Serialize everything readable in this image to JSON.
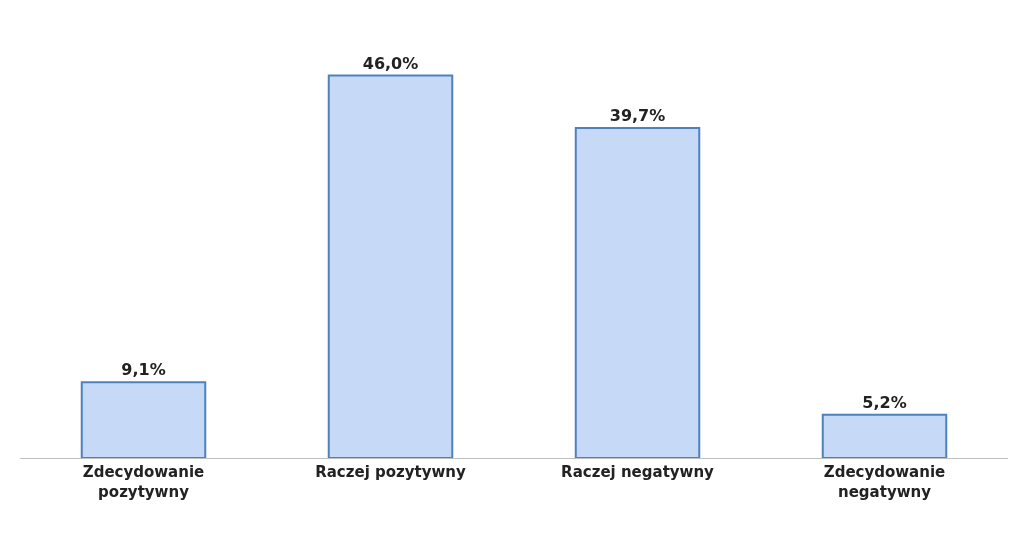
{
  "chart_data": {
    "type": "bar",
    "categories": [
      "Zdecydowanie pozytywny",
      "Raczej pozytywny",
      "Raczej negatywny",
      "Zdecydowanie negatywny"
    ],
    "values": [
      9.1,
      46.0,
      39.7,
      5.2
    ],
    "value_labels": [
      "9,1%",
      "46,0%",
      "39,7%",
      "5,2%"
    ],
    "color": "#c6daf8",
    "legend": false
  }
}
